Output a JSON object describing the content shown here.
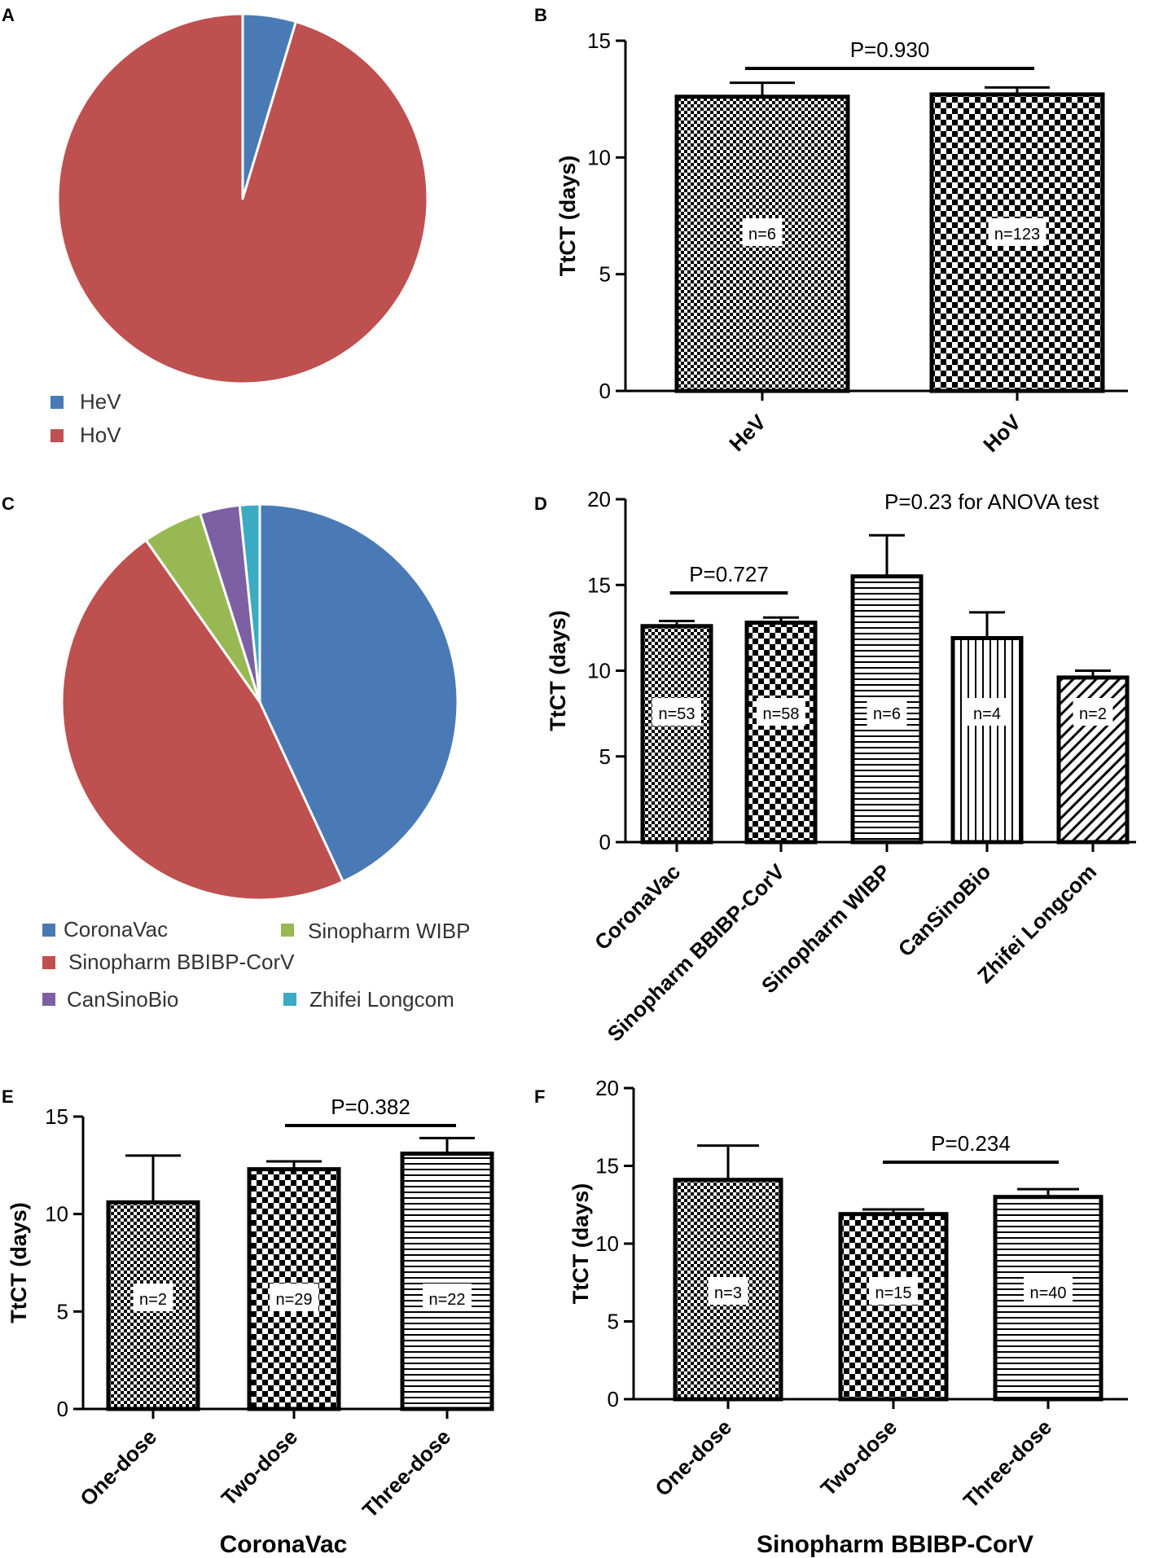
{
  "colors": {
    "blue": "#4A7AB5",
    "red": "#BE504F",
    "green": "#98B854",
    "purple": "#7D5FA3",
    "teal": "#3BAAC3",
    "black": "#000000"
  },
  "chart_data": [
    {
      "panel": "A",
      "type": "pie",
      "slices": [
        {
          "label": "HeV",
          "value": 6,
          "color": "#4A7AB5"
        },
        {
          "label": "HoV",
          "value": 123,
          "color": "#BE504F"
        }
      ]
    },
    {
      "panel": "B",
      "type": "bar",
      "ylabel": "TtCT (days)",
      "ylim": [
        0,
        15
      ],
      "yticks": [
        0,
        5,
        10,
        15
      ],
      "categories": [
        "HeV",
        "HoV"
      ],
      "values": [
        12.6,
        12.7
      ],
      "errors": [
        0.6,
        0.3
      ],
      "n_labels": [
        "n=6",
        "n=123"
      ],
      "patterns": [
        "fine",
        "checker"
      ],
      "comparisons": [
        {
          "from": 0,
          "to": 1,
          "label": "P=0.930"
        }
      ]
    },
    {
      "panel": "C",
      "type": "pie",
      "slices": [
        {
          "label": "CoronaVac",
          "value": 53,
          "color": "#4A7AB5"
        },
        {
          "label": "Sinopharm BBIBP-CorV",
          "value": 58,
          "color": "#BE504F"
        },
        {
          "label": "Sinopharm WIBP",
          "value": 6,
          "color": "#98B854"
        },
        {
          "label": "CanSinoBio",
          "value": 4,
          "color": "#7D5FA3"
        },
        {
          "label": "Zhifei Longcom",
          "value": 2,
          "color": "#3BAAC3"
        }
      ]
    },
    {
      "panel": "D",
      "type": "bar",
      "ylabel": "TtCT (days)",
      "ylim": [
        0,
        20
      ],
      "yticks": [
        0,
        5,
        10,
        15,
        20
      ],
      "categories": [
        "CoronaVac",
        "Sinopharm BBIBP-CorV",
        "Sinopharm WIBP",
        "CanSinoBio",
        "Zhifei Longcom"
      ],
      "values": [
        12.6,
        12.8,
        15.5,
        11.9,
        9.6
      ],
      "errors": [
        0.3,
        0.3,
        2.4,
        1.5,
        0.4
      ],
      "n_labels": [
        "n=53",
        "n=58",
        "n=6",
        "n=4",
        "n=2"
      ],
      "patterns": [
        "fine",
        "checker",
        "hstripes",
        "vstripes",
        "diag"
      ],
      "comparisons": [
        {
          "from": 0,
          "to": 1,
          "label": "P=0.727"
        }
      ],
      "annotation": "P=0.23 for ANOVA test"
    },
    {
      "panel": "E",
      "type": "bar",
      "ylabel": "TtCT (days)",
      "ylim": [
        0,
        15
      ],
      "yticks": [
        0,
        5,
        10,
        15
      ],
      "categories": [
        "One-dose",
        "Two-dose",
        "Three-dose"
      ],
      "values": [
        10.6,
        12.3,
        13.1
      ],
      "errors": [
        2.4,
        0.4,
        0.8
      ],
      "n_labels": [
        "n=2",
        "n=29",
        "n=22"
      ],
      "patterns": [
        "fine",
        "checker",
        "hstripes"
      ],
      "comparisons": [
        {
          "from": 1,
          "to": 2,
          "label": "P=0.382"
        }
      ],
      "xtitle": "CoronaVac"
    },
    {
      "panel": "F",
      "type": "bar",
      "ylabel": "TtCT (days)",
      "ylim": [
        0,
        20
      ],
      "yticks": [
        0,
        5,
        10,
        15,
        20
      ],
      "categories": [
        "One-dose",
        "Two-dose",
        "Three-dose"
      ],
      "values": [
        14.1,
        11.9,
        13.0
      ],
      "errors": [
        2.2,
        0.3,
        0.5
      ],
      "n_labels": [
        "n=3",
        "n=15",
        "n=40"
      ],
      "patterns": [
        "fine",
        "checker",
        "hstripes"
      ],
      "comparisons": [
        {
          "from": 1,
          "to": 2,
          "label": "P=0.234"
        }
      ],
      "xtitle": "Sinopharm BBIBP-CorV"
    }
  ]
}
